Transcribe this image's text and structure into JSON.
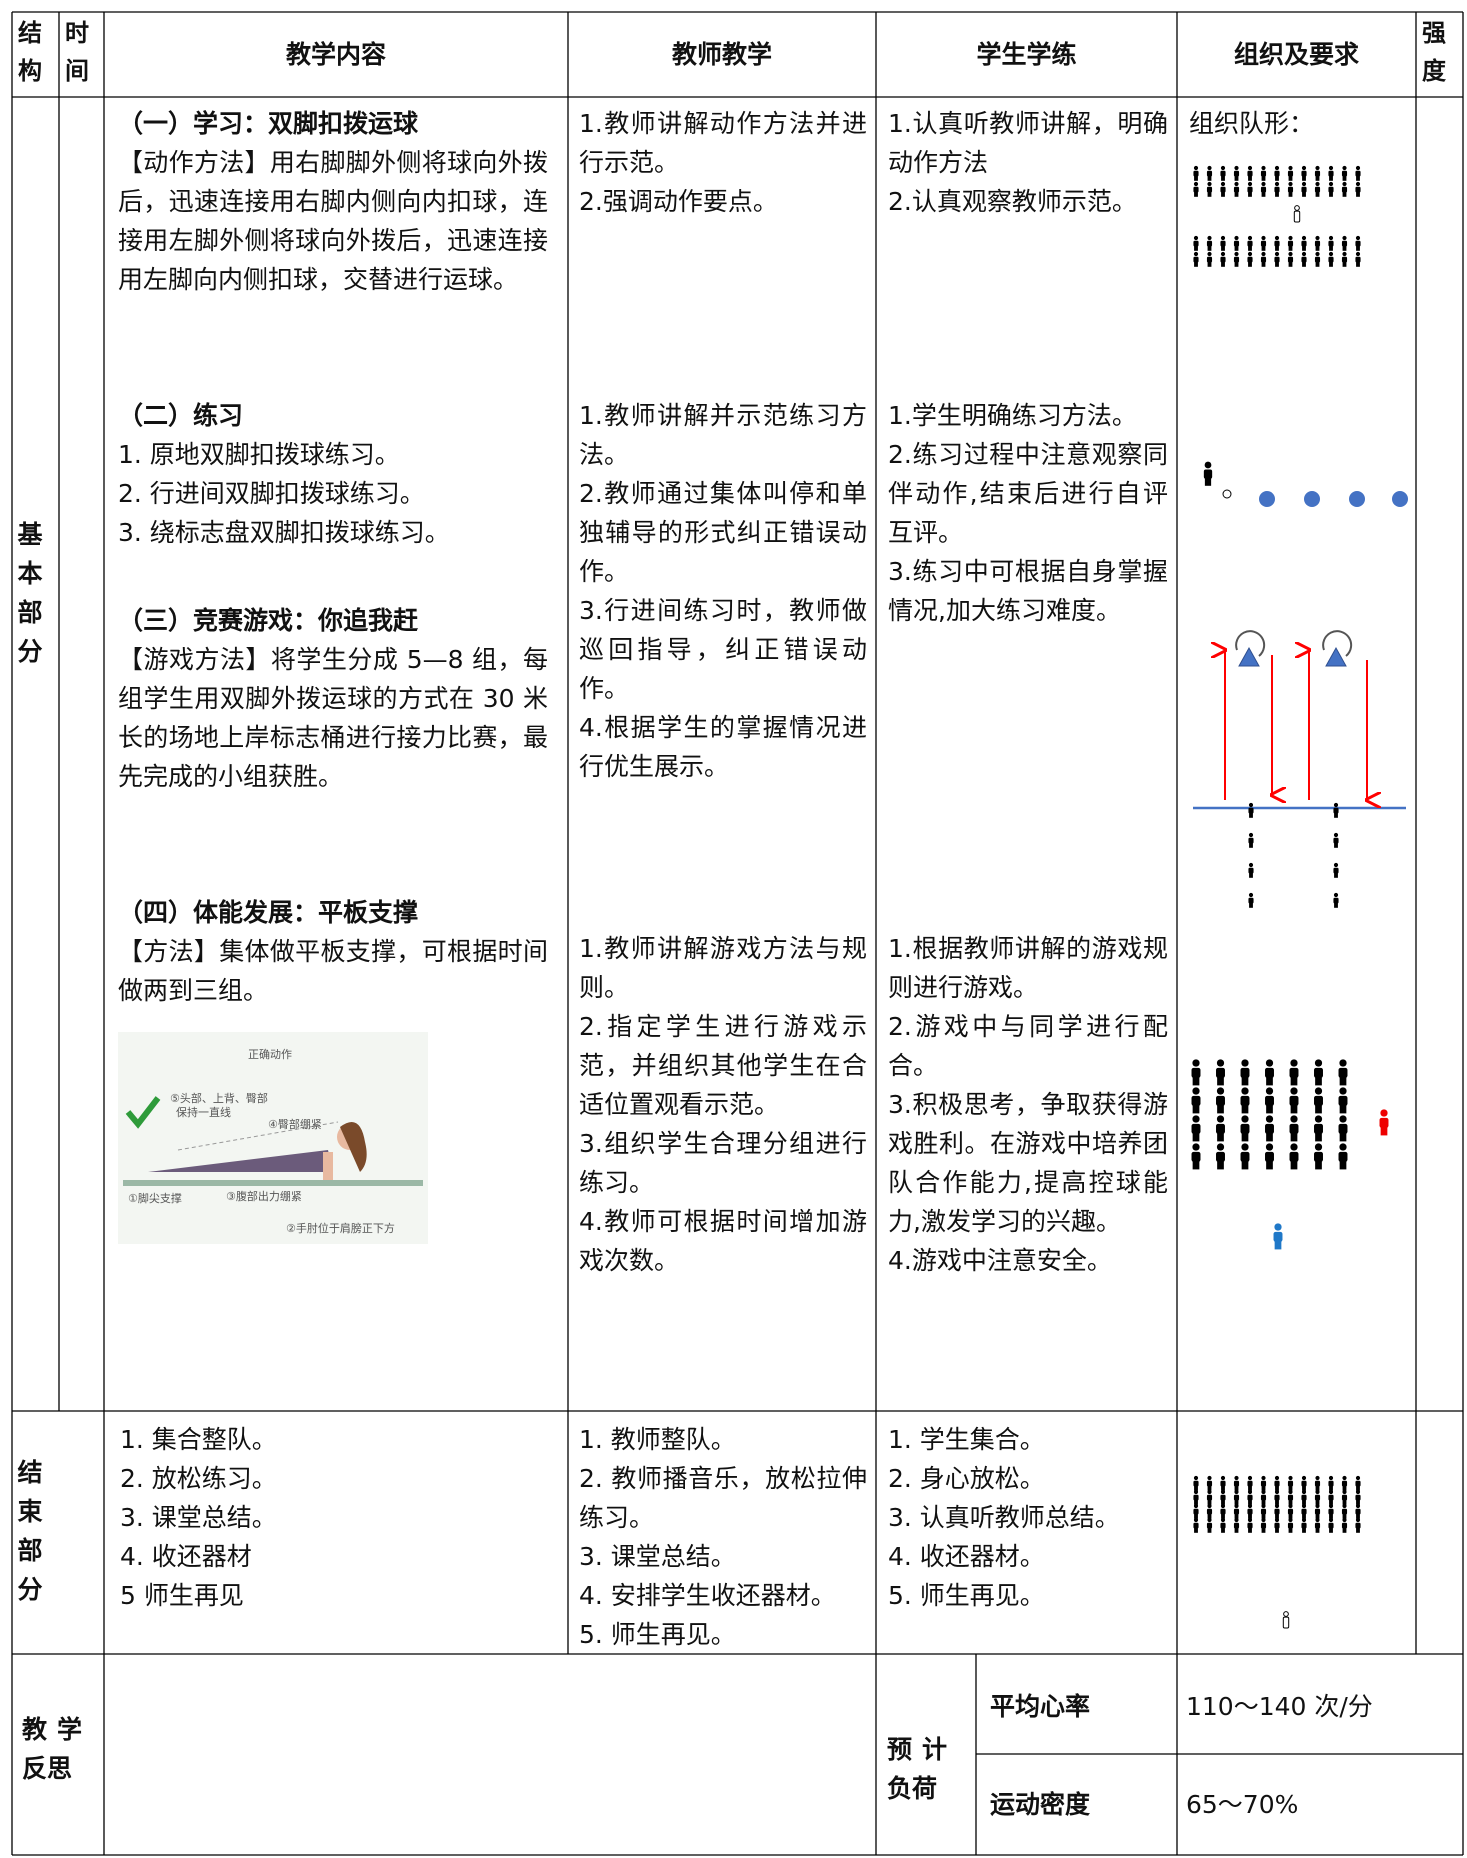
{
  "header": {
    "columns": [
      "结构",
      "时间",
      "教学内容",
      "教师教学",
      "学生学练",
      "组织及要求",
      "强度"
    ]
  },
  "main": {
    "section": "基本部分",
    "content": [
      {
        "title": "（一）学习：双脚扣拨运球",
        "text": [
          "【动作方法】用右脚脚外侧将球向外拨后，迅速连接用右脚内侧向内扣球，连接用左脚外侧将球向外拨后，迅速连接用左脚向内侧扣球，交替进行运球。"
        ]
      },
      {
        "title": "（二）练习",
        "text": [
          "1.  原地双脚扣拨球练习。",
          "2.  行进间双脚扣拨球练习。",
          "3.  绕标志盘双脚扣拨球练习。"
        ]
      },
      {
        "title": "（三）竞赛游戏：你追我赶",
        "text": [
          "【游戏方法】将学生分成 5—8 组，每组学生用双脚外拨运球的方式在 30 米长的场地上岸标志桶进行接力比赛，最先完成的小组获胜。"
        ]
      },
      {
        "title": "（四）体能发展：平板支撑",
        "text": [
          "【方法】集体做平板支撑，可根据时间做两到三组。"
        ]
      }
    ],
    "figure": {
      "title": "正确动作",
      "labels": [
        "⑤头部、上背、臀部",
        "保持一直线",
        "④臀部绷紧",
        "①脚尖支撑",
        "③腹部出力绷紧",
        "②手肘位于肩膀正下方"
      ]
    },
    "teacher": [
      [
        "1.教师讲解动作方法并进行示范。",
        "2.强调动作要点。"
      ],
      [
        "1.教师讲解并示范练习方法。",
        "2.教师通过集体叫停和单独辅导的形式纠正错误动作。",
        "3.行进间练习时，教师做巡回指导，纠正错误动作。",
        "4.根据学生的掌握情况进行优生展示。"
      ],
      [
        "1.教师讲解游戏方法与规则。",
        "2.指定学生进行游戏示范，并组织其他学生在合适位置观看示范。",
        "3.组织学生合理分组进行练习。",
        "4.教师可根据时间增加游戏次数。"
      ]
    ],
    "student": [
      [
        "1.认真听教师讲解，明确动作方法",
        "2.认真观察教师示范。"
      ],
      [
        "1.学生明确练习方法。",
        "2.练习过程中注意观察同伴动作,结束后进行自评互评。",
        "3.练习中可根据自身掌握情况,加大练习难度。"
      ],
      [
        "1.根据教师讲解的游戏规则进行游戏。",
        "2.游戏中与同学进行配合。",
        "3.积极思考，争取获得游戏胜利。在游戏中培养团队合作能力,提高控球能力,激发学习的兴趣。",
        "4.游戏中注意安全。"
      ]
    ],
    "organization": "组织队形："
  },
  "ending": {
    "section": "结束部分",
    "content": [
      "1. 集合整队。",
      "2. 放松练习。",
      "3. 课堂总结。",
      "4. 收还器材",
      "5 师生再见"
    ],
    "teacher": [
      "1. 教师整队。",
      "2. 教师播音乐，放松拉伸练习。",
      "3. 课堂总结。",
      "4. 安排学生收还器材。",
      "5. 师生再见。"
    ],
    "student": [
      "1. 学生集合。",
      "2. 身心放松。",
      "3. 认真听教师总结。",
      "4. 收还器材。",
      "5. 师生再见。"
    ]
  },
  "reflection": {
    "label": "教学反思",
    "load_label": "预计负荷",
    "items": [
      {
        "name": "平均心率",
        "value": "110～140 次/分"
      },
      {
        "name": "运动密度",
        "value": "65～70%"
      }
    ]
  }
}
